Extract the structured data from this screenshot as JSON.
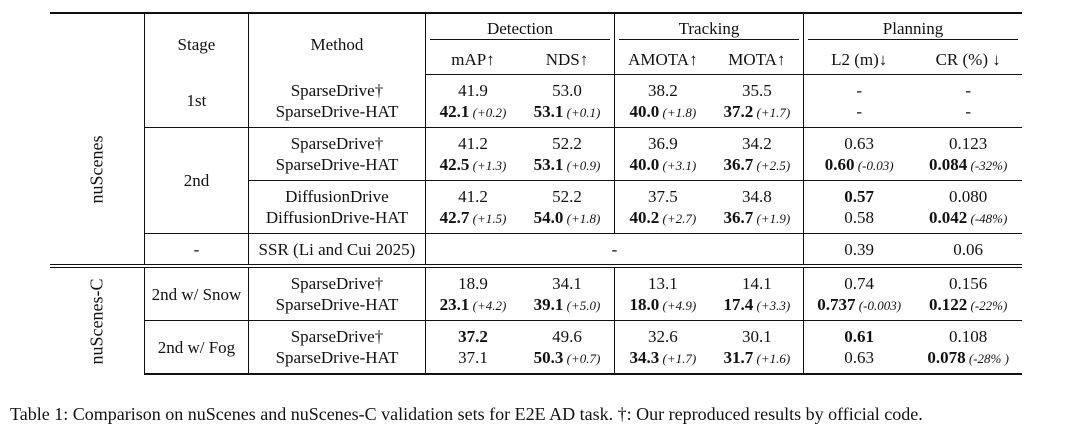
{
  "table": {
    "header": {
      "stage": "Stage",
      "method": "Method",
      "groups": {
        "detection": "Detection",
        "tracking": "Tracking",
        "planning": "Planning"
      },
      "metrics": {
        "map": "mAP↑",
        "nds": "NDS↑",
        "amota": "AMOTA↑",
        "mota": "MOTA↑",
        "l2": "L2 (m)↓",
        "cr": "CR (%) ↓"
      }
    },
    "datasets": {
      "nuscenes": "nuScenes",
      "nuscenes_c": "nuScenes-C"
    },
    "stages": {
      "s1": "1st",
      "s2": "2nd",
      "dash": "-",
      "snow": "2nd w/ Snow",
      "fog": "2nd w/ Fog"
    },
    "ssr_method": "SSR (Li and Cui 2025)",
    "ssr_dash": "-",
    "ssr_l2": "0.39",
    "ssr_cr": "0.06",
    "groups": [
      {
        "a": "SparseDrive†",
        "b": "SparseDrive-HAT",
        "map": [
          "41.9",
          "42.1",
          " (+0.2)"
        ],
        "nds": [
          "53.0",
          "53.1",
          " (+0.1)"
        ],
        "amota": [
          "38.2",
          "40.0",
          " (+1.8)"
        ],
        "mota": [
          "35.5",
          "37.2",
          " (+1.7)"
        ],
        "l2": [
          "-",
          "-",
          ""
        ],
        "cr": [
          "-",
          "-",
          ""
        ]
      },
      {
        "a": "SparseDrive†",
        "b": "SparseDrive-HAT",
        "map": [
          "41.2",
          "42.5",
          " (+1.3)"
        ],
        "nds": [
          "52.2",
          "53.1",
          " (+0.9)"
        ],
        "amota": [
          "36.9",
          "40.0",
          " (+3.1)"
        ],
        "mota": [
          "34.2",
          "36.7",
          " (+2.5)"
        ],
        "l2": [
          "0.63",
          "0.60",
          " (-0.03)"
        ],
        "cr": [
          "0.123",
          "0.084",
          " (-32%)"
        ]
      },
      {
        "a": "DiffusionDrive",
        "b": "DiffusionDrive-HAT",
        "map": [
          "41.2",
          "42.7",
          " (+1.5)"
        ],
        "nds": [
          "52.2",
          "54.0",
          " (+1.8)"
        ],
        "amota": [
          "37.5",
          "40.2",
          " (+2.7)"
        ],
        "mota": [
          "34.8",
          "36.7",
          " (+1.9)"
        ],
        "l2": [
          "0.57",
          "0.58",
          ""
        ],
        "cr": [
          "0.080",
          "0.042",
          " (-48%)"
        ]
      },
      {
        "a": "SparseDrive†",
        "b": "SparseDrive-HAT",
        "map": [
          "18.9",
          "23.1",
          " (+4.2)"
        ],
        "nds": [
          "34.1",
          "39.1",
          " (+5.0)"
        ],
        "amota": [
          "13.1",
          "18.0",
          " (+4.9)"
        ],
        "mota": [
          "14.1",
          "17.4",
          " (+3.3)"
        ],
        "l2": [
          "0.74",
          "0.737",
          " (-0.003)"
        ],
        "cr": [
          "0.156",
          "0.122",
          " (-22%)"
        ]
      },
      {
        "a": "SparseDrive†",
        "b": "SparseDrive-HAT",
        "map": [
          "37.2",
          "37.1",
          ""
        ],
        "nds": [
          "49.6",
          "50.3",
          " (+0.7)"
        ],
        "amota": [
          "32.6",
          "34.3",
          " (+1.7)"
        ],
        "mota": [
          "30.1",
          "31.7",
          " (+1.6)"
        ],
        "l2": [
          "0.61",
          "0.63",
          ""
        ],
        "cr": [
          "0.108",
          "0.078",
          " (-28% )"
        ]
      }
    ]
  },
  "caption": "Table 1: Comparison on nuScenes and nuScenes-C validation sets for E2E AD task. †: Our reproduced results by official code."
}
